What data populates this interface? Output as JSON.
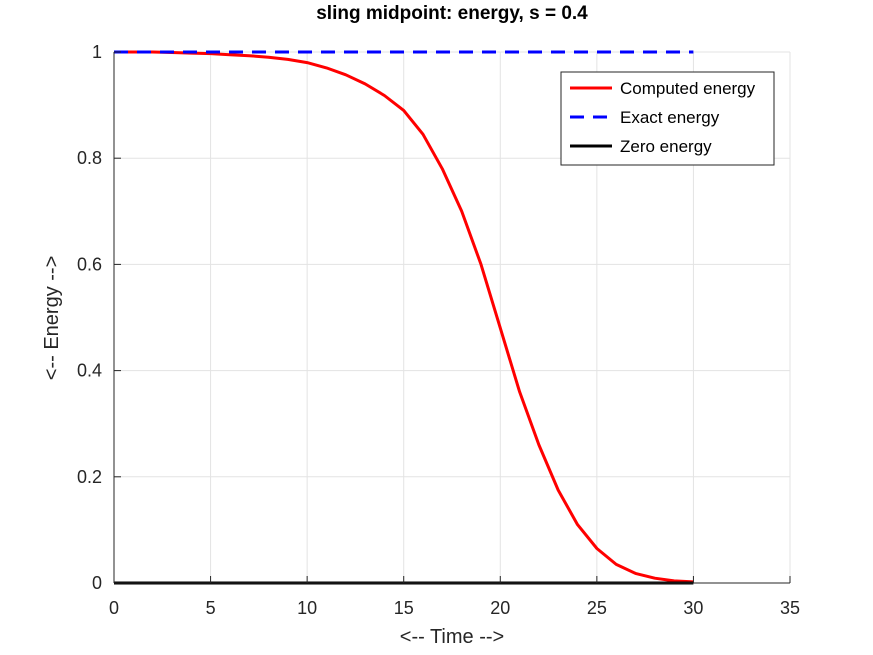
{
  "chart_data": {
    "type": "line",
    "title": "sling midpoint: energy, s = 0.4",
    "xlabel": "<-- Time -->",
    "ylabel": "<-- Energy -->",
    "xlim": [
      0,
      35
    ],
    "ylim": [
      0,
      1
    ],
    "xticks": [
      0,
      5,
      10,
      15,
      20,
      25,
      30,
      35
    ],
    "xtick_labels": [
      "0",
      "5",
      "10",
      "15",
      "20",
      "25",
      "30",
      "35"
    ],
    "yticks": [
      0,
      0.2,
      0.4,
      0.6,
      0.8,
      1
    ],
    "ytick_labels": [
      "0",
      "0.2",
      "0.4",
      "0.6",
      "0.8",
      "1"
    ],
    "grid": true,
    "legend_position": "top-right",
    "series": [
      {
        "name": "Computed energy",
        "color": "#ff0000",
        "style": "solid",
        "x": [
          0,
          1,
          2,
          3,
          4,
          5,
          6,
          7,
          8,
          9,
          10,
          11,
          12,
          13,
          14,
          15,
          16,
          17,
          18,
          19,
          20,
          21,
          22,
          23,
          24,
          25,
          26,
          27,
          28,
          29,
          30
        ],
        "y": [
          1.0,
          1.0,
          1.0,
          0.999,
          0.998,
          0.997,
          0.995,
          0.993,
          0.99,
          0.986,
          0.98,
          0.97,
          0.957,
          0.94,
          0.918,
          0.89,
          0.845,
          0.78,
          0.7,
          0.6,
          0.48,
          0.36,
          0.26,
          0.175,
          0.11,
          0.065,
          0.035,
          0.018,
          0.009,
          0.004,
          0.002
        ]
      },
      {
        "name": "Exact energy",
        "color": "#0000ff",
        "style": "dashed",
        "x": [
          0,
          30
        ],
        "y": [
          1,
          1
        ]
      },
      {
        "name": "Zero energy",
        "color": "#000000",
        "style": "solid",
        "x": [
          0,
          30
        ],
        "y": [
          0,
          0
        ]
      }
    ]
  }
}
